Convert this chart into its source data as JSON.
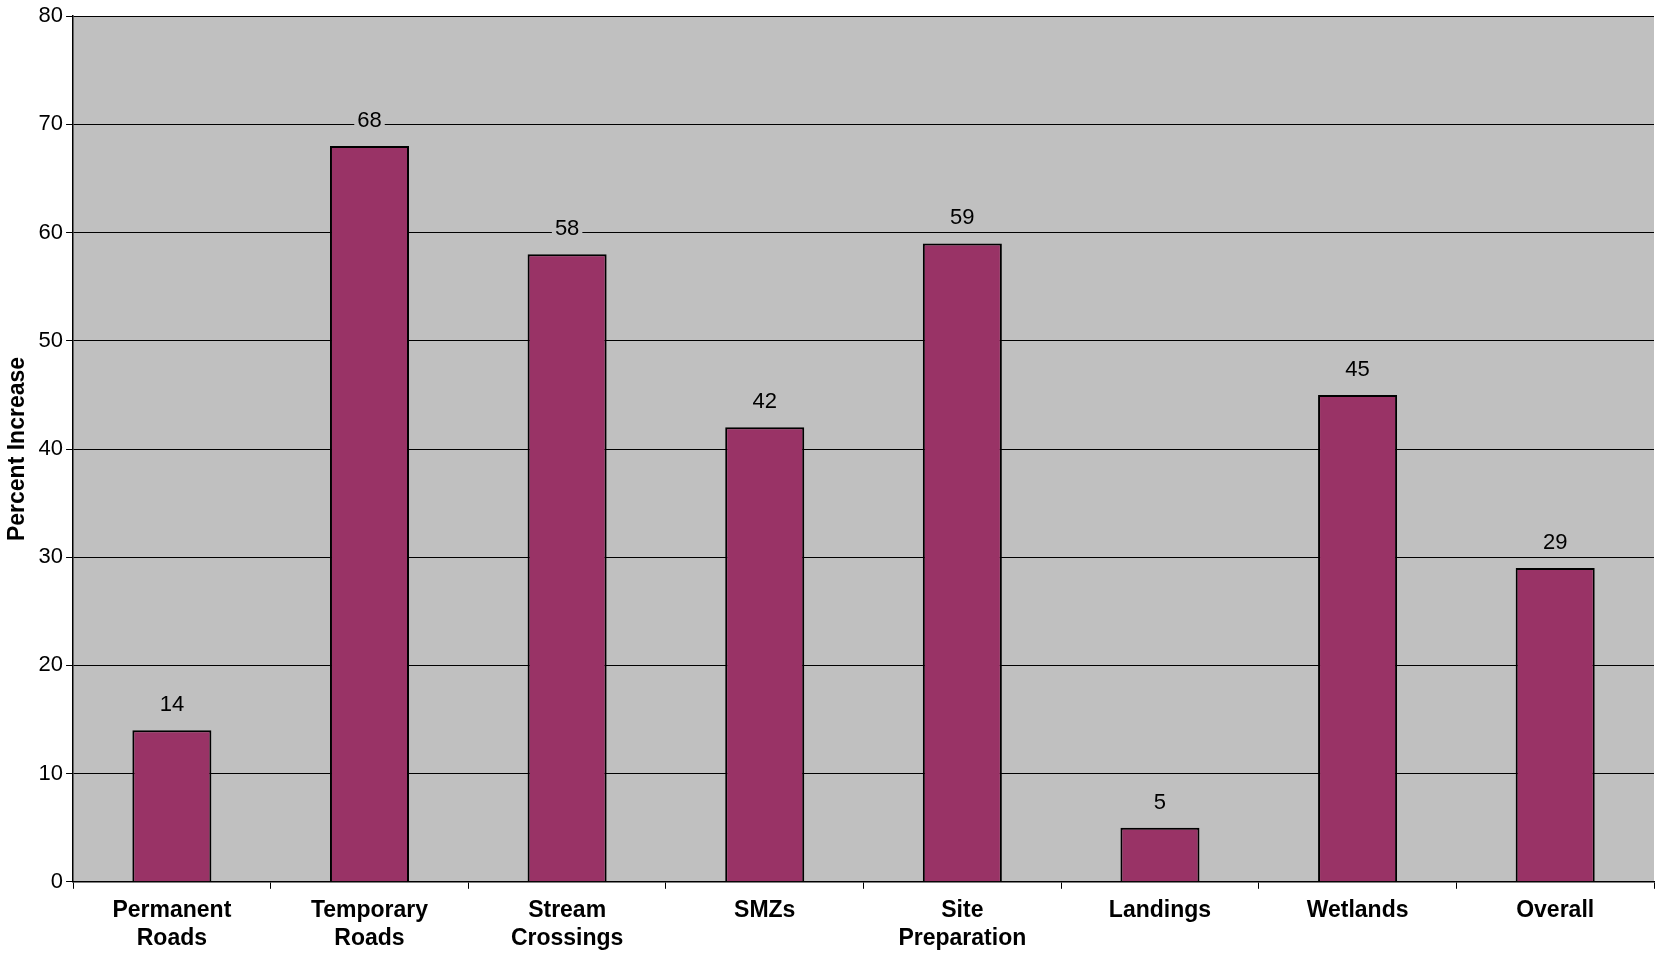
{
  "chart_data": {
    "type": "bar",
    "ylabel": "Percent Increase",
    "categories": [
      "Permanent Roads",
      "Temporary Roads",
      "Stream Crossings",
      "SMZs",
      "Site Preparation",
      "Landings",
      "Wetlands",
      "Overall"
    ],
    "values": [
      14,
      68,
      58,
      42,
      59,
      5,
      45,
      29
    ],
    "color": "#993366",
    "ylim": [
      0,
      80
    ],
    "yticks": [
      0,
      10,
      20,
      30,
      40,
      50,
      60,
      70,
      80
    ],
    "grid": "y",
    "legend": false,
    "data_labels": true
  }
}
